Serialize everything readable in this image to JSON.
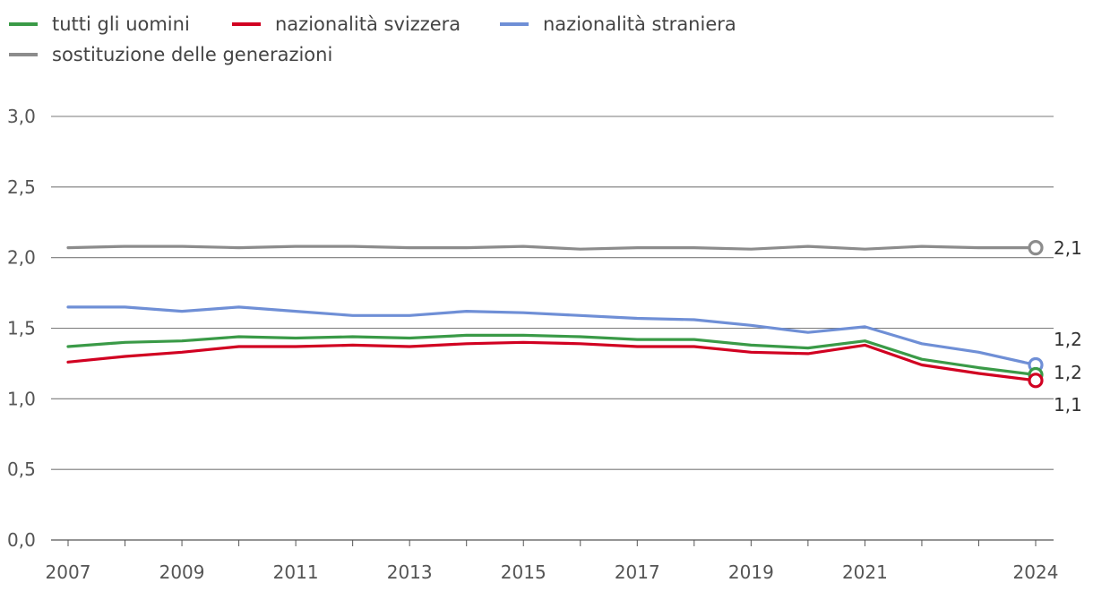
{
  "chart_data": {
    "type": "line",
    "x": [
      2007,
      2008,
      2009,
      2010,
      2011,
      2012,
      2013,
      2014,
      2015,
      2016,
      2017,
      2018,
      2019,
      2020,
      2021,
      2022,
      2023,
      2024
    ],
    "x_tick_labels": [
      "2007",
      "2009",
      "2011",
      "2013",
      "2015",
      "2017",
      "2019",
      "2021",
      "2024"
    ],
    "y_tick_labels": [
      "0,0",
      "0,5",
      "1,0",
      "1,5",
      "2,0",
      "2,5",
      "3,0"
    ],
    "ylim": [
      0,
      3
    ],
    "grid": true,
    "legend_position": "top-left",
    "series": [
      {
        "name": "tutti gli uomini",
        "color": "#3a9a47",
        "values": [
          1.37,
          1.4,
          1.41,
          1.44,
          1.43,
          1.44,
          1.43,
          1.45,
          1.45,
          1.44,
          1.42,
          1.42,
          1.38,
          1.36,
          1.41,
          1.28,
          1.22,
          1.17
        ],
        "end_label": "1,2"
      },
      {
        "name": "nazionalità svizzera",
        "color": "#d10021",
        "values": [
          1.26,
          1.3,
          1.33,
          1.37,
          1.37,
          1.38,
          1.37,
          1.39,
          1.4,
          1.39,
          1.37,
          1.37,
          1.33,
          1.32,
          1.38,
          1.24,
          1.18,
          1.13
        ],
        "end_label": "1,1"
      },
      {
        "name": "nazionalità straniera",
        "color": "#6f8fd6",
        "values": [
          1.65,
          1.65,
          1.62,
          1.65,
          1.62,
          1.59,
          1.59,
          1.62,
          1.61,
          1.59,
          1.57,
          1.56,
          1.52,
          1.47,
          1.51,
          1.39,
          1.33,
          1.24
        ],
        "end_label": "1,2"
      },
      {
        "name": "sostituzione delle generazioni",
        "color": "#8c8c8c",
        "values": [
          2.07,
          2.08,
          2.08,
          2.07,
          2.08,
          2.08,
          2.07,
          2.07,
          2.08,
          2.06,
          2.07,
          2.07,
          2.06,
          2.08,
          2.06,
          2.08,
          2.07,
          2.07
        ],
        "end_label": "2,1"
      }
    ]
  }
}
